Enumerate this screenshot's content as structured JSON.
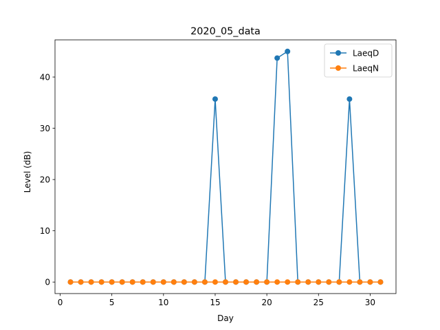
{
  "chart_data": {
    "type": "line",
    "title": "2020_05_data",
    "xlabel": "Day",
    "ylabel": "Level (dB)",
    "xlim": [
      -0.5,
      32.5
    ],
    "ylim": [
      -2.25,
      47.25
    ],
    "xticks": [
      0,
      5,
      10,
      15,
      20,
      25,
      30
    ],
    "xtick_labels": [
      "0",
      "5",
      "10",
      "15",
      "20",
      "25",
      "30"
    ],
    "yticks": [
      0,
      10,
      20,
      30,
      40
    ],
    "ytick_labels": [
      "0",
      "10",
      "20",
      "30",
      "40"
    ],
    "grid": false,
    "legend_position": "top-right",
    "x": [
      1,
      2,
      3,
      4,
      5,
      6,
      7,
      8,
      9,
      10,
      11,
      12,
      13,
      14,
      15,
      16,
      17,
      18,
      19,
      20,
      21,
      22,
      23,
      24,
      25,
      26,
      27,
      28,
      29,
      30,
      31
    ],
    "series": [
      {
        "name": "LaeqD",
        "color": "#1f77b4",
        "marker": "circle",
        "values": [
          0,
          0,
          0,
          0,
          0,
          0,
          0,
          0,
          0,
          0,
          0,
          0,
          0,
          0,
          35.7,
          0,
          0,
          0,
          0,
          0,
          43.7,
          45.0,
          0,
          0,
          0,
          0,
          0,
          35.7,
          0,
          0,
          0
        ]
      },
      {
        "name": "LaeqN",
        "color": "#ff7f0e",
        "marker": "circle",
        "values": [
          0,
          0,
          0,
          0,
          0,
          0,
          0,
          0,
          0,
          0,
          0,
          0,
          0,
          0,
          0,
          0,
          0,
          0,
          0,
          0,
          0,
          0,
          0,
          0,
          0,
          0,
          0,
          0,
          0,
          0,
          0
        ]
      }
    ]
  }
}
